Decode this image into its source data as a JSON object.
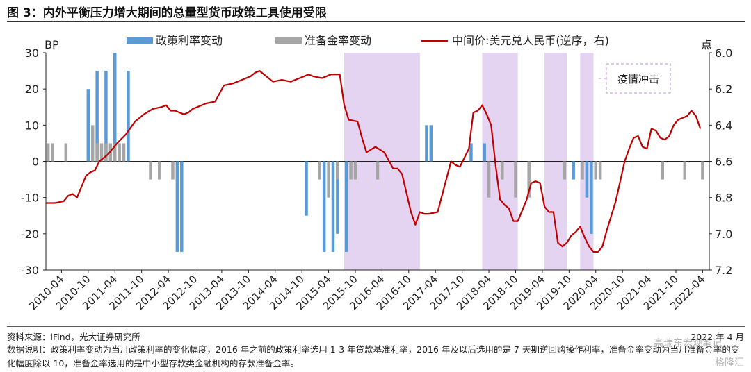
{
  "title": "图 3：内外平衡压力增大期间的总量型货币政策工具使用受限",
  "source": "资料来源：iFind，光大证券研究所",
  "notes": "数据说明：政策利率变动为当月政策利率的变化幅度，2016 年之前的政策利率选用 1-3 年贷款基准利率，2016 年及以后选用的是 7 天期逆回购操作利率，准备金率变动为当月准备金率的变化幅度除以 10，准备金率选用的是中小型存款类金融机构的存款准备金率。",
  "date_text": "2022 年 4 月",
  "watermark": "高瑞东宏观笔记",
  "watermark2": "格隆汇",
  "colors": {
    "policy": "#5b9bd5",
    "rrr": "#a6a6a6",
    "fx": "#c00000",
    "shade": "#e4d4f1",
    "annot_border": "#c9a8e0"
  },
  "chart_data": {
    "type": "bar",
    "left_axis_unit": "BP",
    "right_axis_unit": "点",
    "ylim": [
      -30,
      30
    ],
    "yticks": [
      30,
      20,
      10,
      0,
      -10,
      -20,
      -30
    ],
    "y2lim": [
      6.0,
      7.2
    ],
    "y2ticks": [
      "6.0",
      "6.2",
      "6.4",
      "6.6",
      "6.8",
      "7.0",
      "7.2"
    ],
    "y2_inverted": true,
    "x_range": [
      "2010-01",
      "2022-06"
    ],
    "xtick_labels": [
      "2010-04",
      "2010-10",
      "2011-04",
      "2011-10",
      "2012-04",
      "2012-10",
      "2013-04",
      "2013-10",
      "2014-04",
      "2014-10",
      "2015-04",
      "2015-10",
      "2016-04",
      "2016-10",
      "2017-04",
      "2017-10",
      "2018-04",
      "2018-10",
      "2019-04",
      "2019-10",
      "2020-04",
      "2020-10",
      "2021-04",
      "2021-10",
      "2022-04"
    ],
    "annotation": "疫情冲击",
    "shaded_periods": [
      [
        "2015-08",
        "2017-01"
      ],
      [
        "2018-03",
        "2018-11"
      ],
      [
        "2019-05",
        "2019-10"
      ],
      [
        "2020-01",
        "2020-04"
      ]
    ],
    "series": [
      {
        "name": "政策利率变动",
        "kind": "bar",
        "data": [
          [
            "2010-10",
            20
          ],
          [
            "2010-12",
            25
          ],
          [
            "2011-02",
            25
          ],
          [
            "2011-04",
            30
          ],
          [
            "2011-07",
            25
          ],
          [
            "2012-06",
            -25
          ],
          [
            "2012-07",
            -25
          ],
          [
            "2014-11",
            -15
          ],
          [
            "2015-03",
            -25
          ],
          [
            "2015-05",
            -25
          ],
          [
            "2015-06",
            -20
          ],
          [
            "2015-08",
            -25
          ],
          [
            "2017-02",
            10
          ],
          [
            "2017-03",
            10
          ],
          [
            "2017-12",
            5
          ],
          [
            "2018-03",
            5
          ],
          [
            "2019-11",
            -5
          ],
          [
            "2020-02",
            -10
          ],
          [
            "2020-03",
            -20
          ]
        ]
      },
      {
        "name": "准备金率变动",
        "kind": "bar",
        "data": [
          [
            "2010-01",
            5
          ],
          [
            "2010-02",
            5
          ],
          [
            "2010-05",
            5
          ],
          [
            "2010-11",
            10
          ],
          [
            "2010-12",
            5
          ],
          [
            "2011-01",
            5
          ],
          [
            "2011-02",
            5
          ],
          [
            "2011-03",
            5
          ],
          [
            "2011-04",
            5
          ],
          [
            "2011-05",
            5
          ],
          [
            "2011-06",
            5
          ],
          [
            "2011-12",
            -5
          ],
          [
            "2012-02",
            -5
          ],
          [
            "2012-05",
            -5
          ],
          [
            "2015-02",
            -5
          ],
          [
            "2015-04",
            -10
          ],
          [
            "2015-06",
            -5
          ],
          [
            "2015-09",
            -5
          ],
          [
            "2015-10",
            -5
          ],
          [
            "2016-03",
            -5
          ],
          [
            "2018-04",
            -10
          ],
          [
            "2018-07",
            -5
          ],
          [
            "2018-10",
            -10
          ],
          [
            "2019-01",
            -10
          ],
          [
            "2019-09",
            -5
          ],
          [
            "2020-01",
            -5
          ],
          [
            "2020-04",
            -5
          ],
          [
            "2020-05",
            -5
          ],
          [
            "2021-07",
            -5
          ],
          [
            "2021-12",
            -5
          ],
          [
            "2022-04",
            -5
          ]
        ]
      },
      {
        "name": "中间价:美元兑人民币(逆序，右)",
        "kind": "line",
        "axis": "right",
        "data": [
          [
            "2010-01",
            6.83
          ],
          [
            "2010-03",
            6.83
          ],
          [
            "2010-05",
            6.82
          ],
          [
            "2010-06",
            6.79
          ],
          [
            "2010-07",
            6.78
          ],
          [
            "2010-08",
            6.8
          ],
          [
            "2010-09",
            6.74
          ],
          [
            "2010-10",
            6.68
          ],
          [
            "2010-11",
            6.66
          ],
          [
            "2010-12",
            6.65
          ],
          [
            "2011-01",
            6.6
          ],
          [
            "2011-03",
            6.56
          ],
          [
            "2011-05",
            6.5
          ],
          [
            "2011-07",
            6.45
          ],
          [
            "2011-09",
            6.38
          ],
          [
            "2011-11",
            6.34
          ],
          [
            "2012-01",
            6.31
          ],
          [
            "2012-03",
            6.3
          ],
          [
            "2012-04",
            6.29
          ],
          [
            "2012-05",
            6.32
          ],
          [
            "2012-06",
            6.32
          ],
          [
            "2012-07",
            6.33
          ],
          [
            "2012-08",
            6.34
          ],
          [
            "2012-09",
            6.33
          ],
          [
            "2012-10",
            6.31
          ],
          [
            "2012-12",
            6.29
          ],
          [
            "2013-01",
            6.28
          ],
          [
            "2013-03",
            6.27
          ],
          [
            "2013-05",
            6.18
          ],
          [
            "2013-07",
            6.17
          ],
          [
            "2013-09",
            6.15
          ],
          [
            "2013-11",
            6.13
          ],
          [
            "2013-12",
            6.11
          ],
          [
            "2014-01",
            6.1
          ],
          [
            "2014-03",
            6.14
          ],
          [
            "2014-04",
            6.16
          ],
          [
            "2014-06",
            6.15
          ],
          [
            "2014-08",
            6.16
          ],
          [
            "2014-10",
            6.14
          ],
          [
            "2014-12",
            6.12
          ],
          [
            "2015-01",
            6.13
          ],
          [
            "2015-03",
            6.14
          ],
          [
            "2015-05",
            6.12
          ],
          [
            "2015-07",
            6.12
          ],
          [
            "2015-08",
            6.29
          ],
          [
            "2015-09",
            6.37
          ],
          [
            "2015-11",
            6.38
          ],
          [
            "2015-12",
            6.47
          ],
          [
            "2016-01",
            6.55
          ],
          [
            "2016-03",
            6.52
          ],
          [
            "2016-05",
            6.55
          ],
          [
            "2016-07",
            6.64
          ],
          [
            "2016-08",
            6.64
          ],
          [
            "2016-09",
            6.67
          ],
          [
            "2016-11",
            6.88
          ],
          [
            "2016-12",
            6.95
          ],
          [
            "2017-01",
            6.88
          ],
          [
            "2017-02",
            6.89
          ],
          [
            "2017-03",
            6.89
          ],
          [
            "2017-05",
            6.88
          ],
          [
            "2017-08",
            6.6
          ],
          [
            "2017-09",
            6.62
          ],
          [
            "2017-10",
            6.63
          ],
          [
            "2017-11",
            6.58
          ],
          [
            "2017-12",
            6.53
          ],
          [
            "2018-01",
            6.33
          ],
          [
            "2018-02",
            6.32
          ],
          [
            "2018-03",
            6.29
          ],
          [
            "2018-04",
            6.34
          ],
          [
            "2018-05",
            6.4
          ],
          [
            "2018-06",
            6.62
          ],
          [
            "2018-07",
            6.81
          ],
          [
            "2018-08",
            6.84
          ],
          [
            "2018-09",
            6.86
          ],
          [
            "2018-10",
            6.93
          ],
          [
            "2018-11",
            6.93
          ],
          [
            "2019-01",
            6.81
          ],
          [
            "2019-02",
            6.72
          ],
          [
            "2019-03",
            6.71
          ],
          [
            "2019-04",
            6.72
          ],
          [
            "2019-05",
            6.85
          ],
          [
            "2019-06",
            6.88
          ],
          [
            "2019-07",
            6.88
          ],
          [
            "2019-08",
            7.05
          ],
          [
            "2019-09",
            7.07
          ],
          [
            "2019-10",
            7.05
          ],
          [
            "2019-11",
            7.01
          ],
          [
            "2019-12",
            6.99
          ],
          [
            "2020-01",
            6.96
          ],
          [
            "2020-02",
            7.02
          ],
          [
            "2020-03",
            7.07
          ],
          [
            "2020-04",
            7.1
          ],
          [
            "2020-05",
            7.1
          ],
          [
            "2020-06",
            7.07
          ],
          [
            "2020-07",
            6.98
          ],
          [
            "2020-08",
            6.9
          ],
          [
            "2020-09",
            6.82
          ],
          [
            "2020-10",
            6.71
          ],
          [
            "2020-11",
            6.6
          ],
          [
            "2020-12",
            6.53
          ],
          [
            "2021-01",
            6.47
          ],
          [
            "2021-02",
            6.46
          ],
          [
            "2021-03",
            6.52
          ],
          [
            "2021-04",
            6.53
          ],
          [
            "2021-05",
            6.42
          ],
          [
            "2021-06",
            6.43
          ],
          [
            "2021-07",
            6.47
          ],
          [
            "2021-08",
            6.48
          ],
          [
            "2021-09",
            6.46
          ],
          [
            "2021-10",
            6.4
          ],
          [
            "2021-11",
            6.37
          ],
          [
            "2021-12",
            6.36
          ],
          [
            "2022-01",
            6.35
          ],
          [
            "2022-02",
            6.32
          ],
          [
            "2022-03",
            6.35
          ],
          [
            "2022-04",
            6.42
          ]
        ]
      }
    ]
  }
}
